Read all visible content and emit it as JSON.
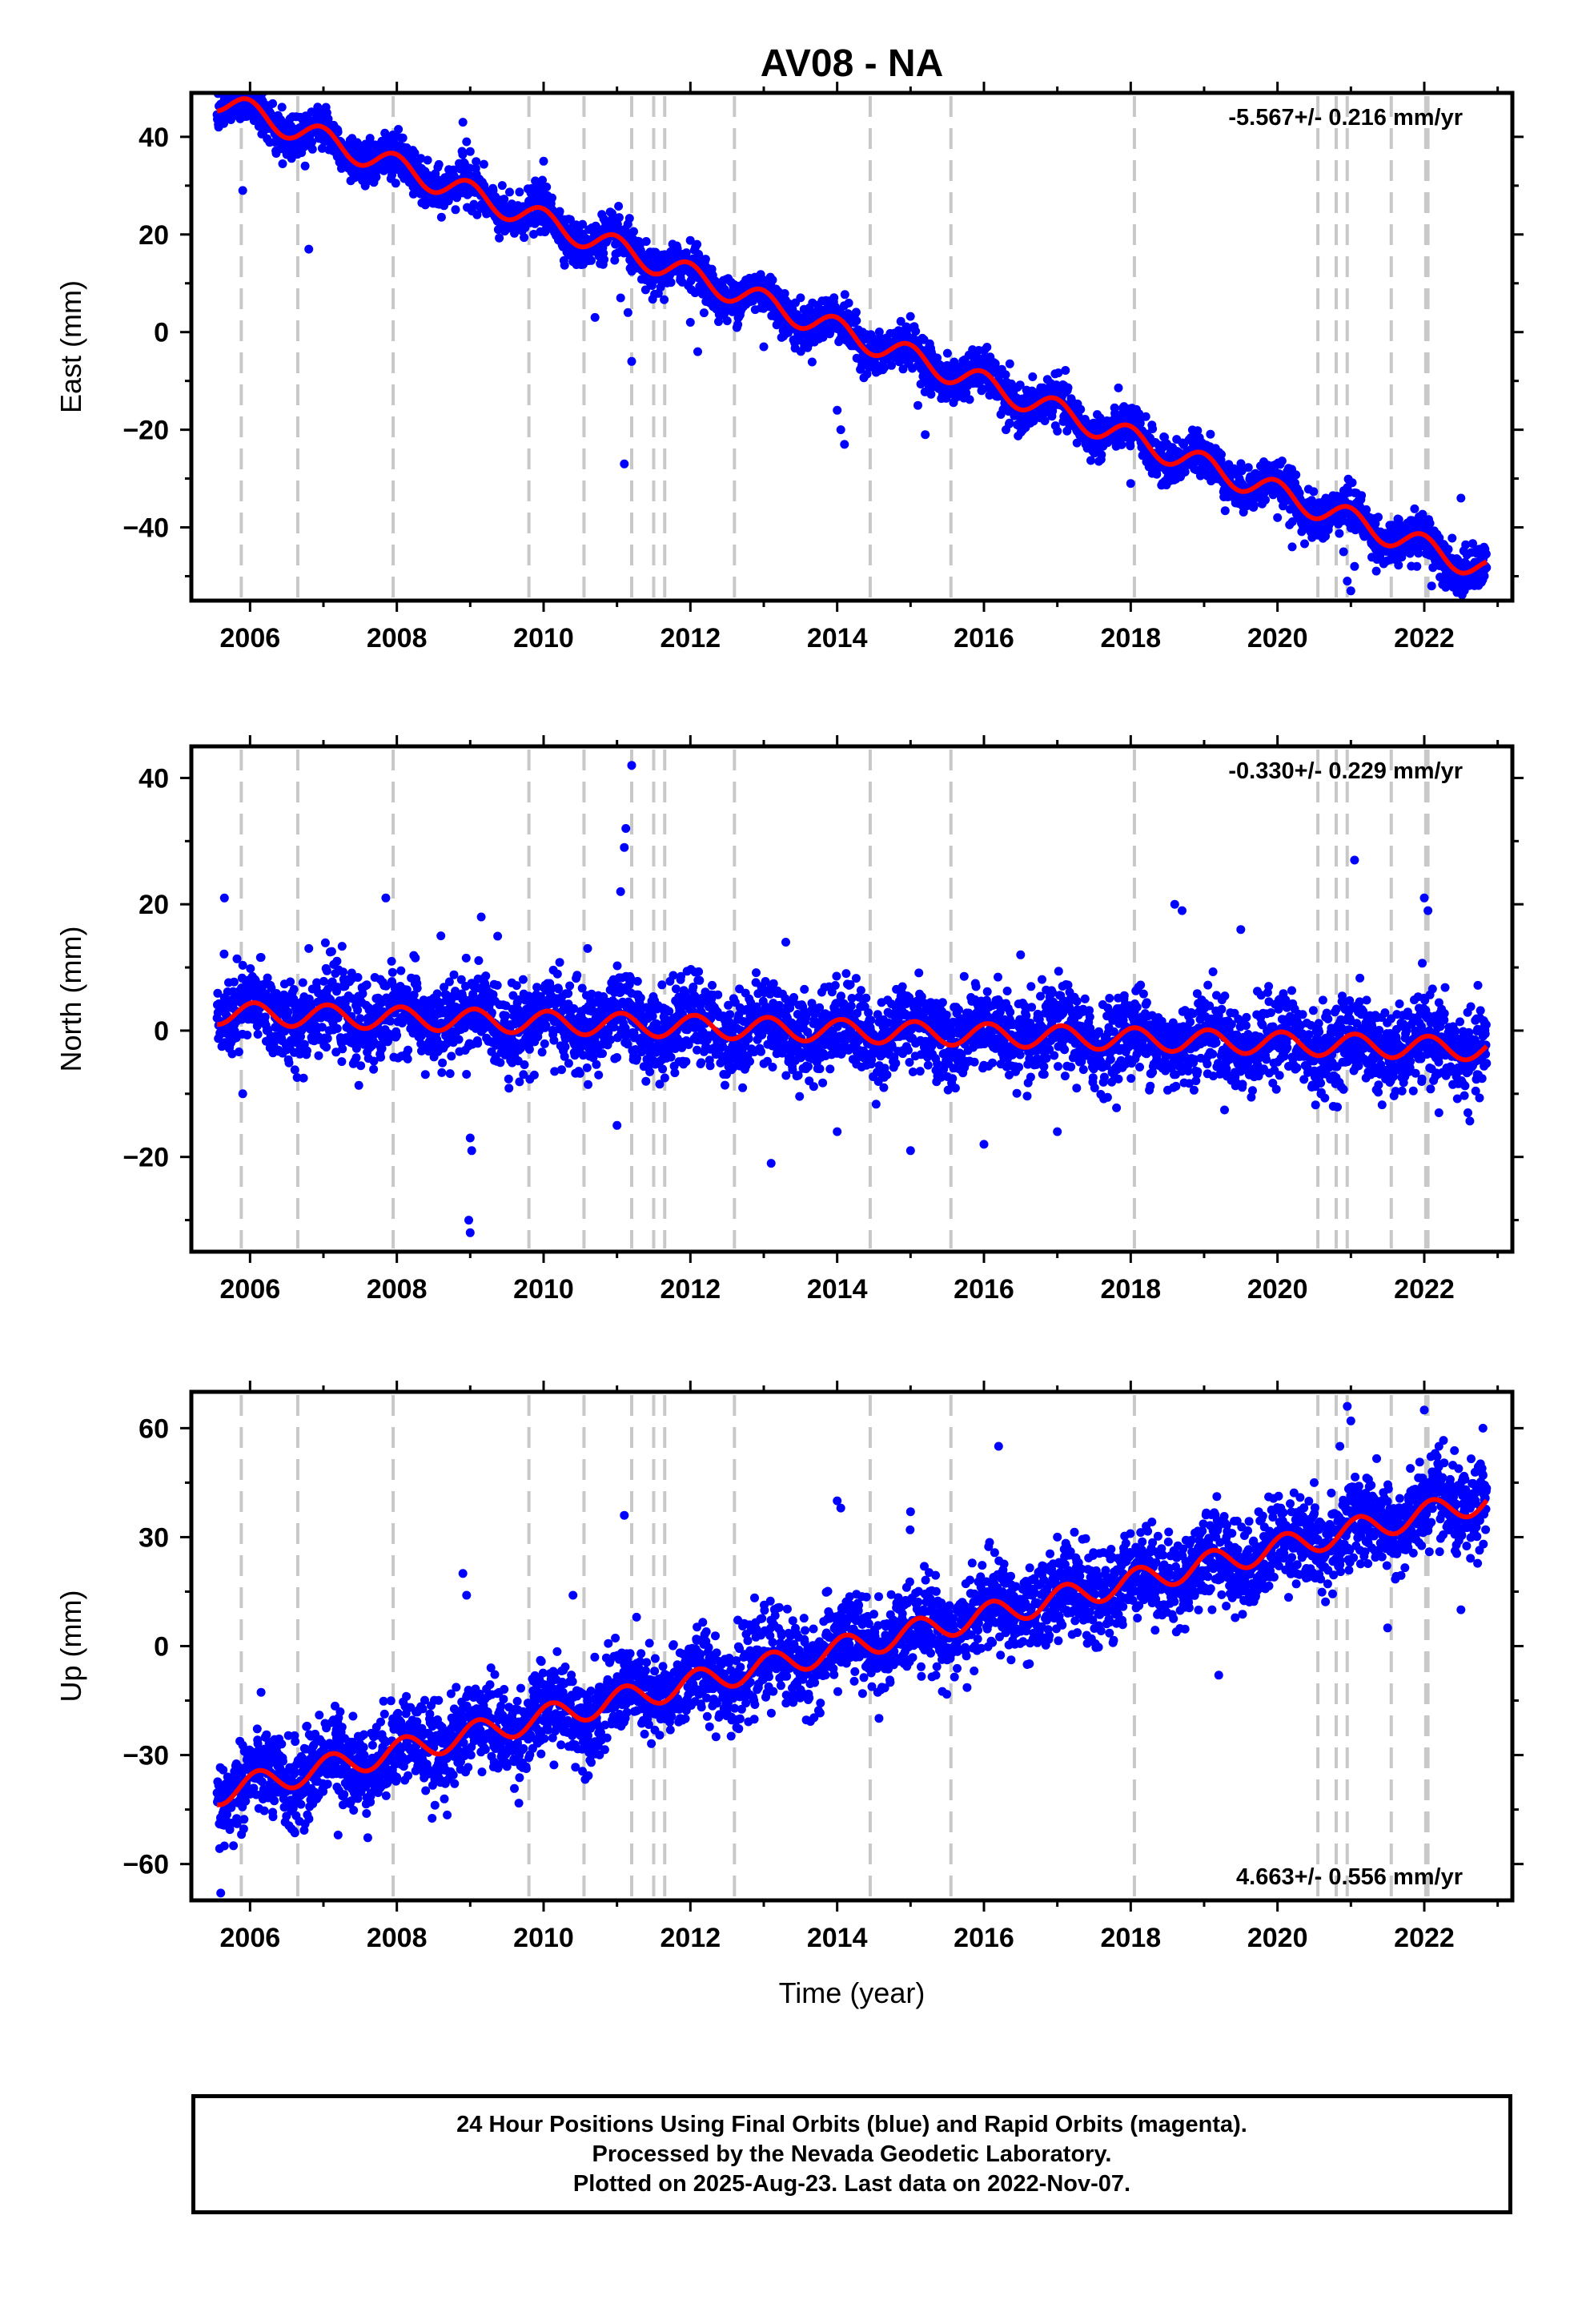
{
  "title": "AV08 - NA",
  "colors": {
    "final_orbits": "#0000ff",
    "model": "#ff0000",
    "offsets": "#c8c8c8",
    "frame": "#000000"
  },
  "footer": {
    "line1": "24 Hour Positions Using Final Orbits (blue) and Rapid Orbits (magenta).",
    "line2": "Processed by the Nevada Geodetic Laboratory.",
    "line3": "Plotted on 2025-Aug-23. Last data on 2022-Nov-07."
  },
  "chart_data": [
    {
      "type": "scatter",
      "ylabel": "East (mm)",
      "xlabel": "",
      "rate_label": "-5.567+/- 0.216 mm/yr",
      "rate_position": "top-right",
      "xlim": [
        2005.2,
        2023.2
      ],
      "ylim": [
        -55,
        49
      ],
      "xticks": [
        2006,
        2008,
        2010,
        2012,
        2014,
        2016,
        2018,
        2020,
        2022
      ],
      "yticks": [
        -40,
        -20,
        0,
        20,
        40
      ],
      "x_start": 2005.55,
      "x_end": 2022.85,
      "velocity": -5.567,
      "intercept_2014": 0.5,
      "annual_amp": 2.5,
      "annual_phase": 1.7,
      "noise": 2.2,
      "spikes": [
        {
          "x": 2005.9,
          "y": 29
        },
        {
          "x": 2006.8,
          "y": 17
        },
        {
          "x": 2008.9,
          "y": 43
        },
        {
          "x": 2008.95,
          "y": 39
        },
        {
          "x": 2009.0,
          "y": 37
        },
        {
          "x": 2010.0,
          "y": 35
        },
        {
          "x": 2010.7,
          "y": 3
        },
        {
          "x": 2011.05,
          "y": 7
        },
        {
          "x": 2011.15,
          "y": 4
        },
        {
          "x": 2011.2,
          "y": -6
        },
        {
          "x": 2011.1,
          "y": -27
        },
        {
          "x": 2012.0,
          "y": 2
        },
        {
          "x": 2012.1,
          "y": -4
        },
        {
          "x": 2013.0,
          "y": -3
        },
        {
          "x": 2014.0,
          "y": -16
        },
        {
          "x": 2014.05,
          "y": -20
        },
        {
          "x": 2014.1,
          "y": -23
        },
        {
          "x": 2015.1,
          "y": -15
        },
        {
          "x": 2015.2,
          "y": -21
        },
        {
          "x": 2016.3,
          "y": -20
        },
        {
          "x": 2016.5,
          "y": -16
        },
        {
          "x": 2018.0,
          "y": -31
        },
        {
          "x": 2020.0,
          "y": -38
        },
        {
          "x": 2020.2,
          "y": -44
        },
        {
          "x": 2020.9,
          "y": -45
        },
        {
          "x": 2020.95,
          "y": -51
        },
        {
          "x": 2021.0,
          "y": -53
        },
        {
          "x": 2021.05,
          "y": -48
        },
        {
          "x": 2021.6,
          "y": -46
        },
        {
          "x": 2021.9,
          "y": -48
        },
        {
          "x": 2022.1,
          "y": -52
        },
        {
          "x": 2022.5,
          "y": -34
        }
      ]
    },
    {
      "type": "scatter",
      "ylabel": "North (mm)",
      "xlabel": "",
      "rate_label": "-0.330+/- 0.229 mm/yr",
      "rate_position": "top-right",
      "xlim": [
        2005.2,
        2023.2
      ],
      "ylim": [
        -35,
        45
      ],
      "xticks": [
        2006,
        2008,
        2010,
        2012,
        2014,
        2016,
        2018,
        2020,
        2022
      ],
      "yticks": [
        -20,
        0,
        20,
        40
      ],
      "x_start": 2005.55,
      "x_end": 2022.85,
      "velocity": -0.33,
      "intercept_2014": 0.0,
      "annual_amp": 1.8,
      "annual_phase": 1.2,
      "noise": 3.3,
      "spikes": [
        {
          "x": 2005.65,
          "y": 21
        },
        {
          "x": 2005.9,
          "y": -10
        },
        {
          "x": 2006.8,
          "y": 13
        },
        {
          "x": 2007.85,
          "y": 21
        },
        {
          "x": 2008.6,
          "y": 15
        },
        {
          "x": 2009.0,
          "y": -17
        },
        {
          "x": 2009.02,
          "y": -19
        },
        {
          "x": 2008.98,
          "y": -30
        },
        {
          "x": 2009.0,
          "y": -32
        },
        {
          "x": 2009.15,
          "y": 18
        },
        {
          "x": 2010.6,
          "y": 13
        },
        {
          "x": 2011.0,
          "y": -15
        },
        {
          "x": 2011.05,
          "y": 22
        },
        {
          "x": 2011.1,
          "y": 29
        },
        {
          "x": 2011.12,
          "y": 32
        },
        {
          "x": 2011.2,
          "y": 42
        },
        {
          "x": 2013.1,
          "y": -21
        },
        {
          "x": 2013.3,
          "y": 14
        },
        {
          "x": 2014.0,
          "y": -16
        },
        {
          "x": 2015.0,
          "y": -19
        },
        {
          "x": 2016.0,
          "y": -18
        },
        {
          "x": 2016.5,
          "y": 12
        },
        {
          "x": 2017.0,
          "y": -16
        },
        {
          "x": 2018.6,
          "y": 20
        },
        {
          "x": 2018.7,
          "y": 19
        },
        {
          "x": 2019.5,
          "y": 16
        },
        {
          "x": 2021.05,
          "y": 27
        },
        {
          "x": 2022.0,
          "y": 21
        },
        {
          "x": 2022.05,
          "y": 19
        },
        {
          "x": 2022.2,
          "y": -13
        }
      ]
    },
    {
      "type": "scatter",
      "ylabel": "Up (mm)",
      "xlabel": "Time (year)",
      "rate_label": "4.663+/- 0.556 mm/yr",
      "rate_position": "bottom-right",
      "xlim": [
        2005.2,
        2023.2
      ],
      "ylim": [
        -70,
        70
      ],
      "xticks": [
        2006,
        2008,
        2010,
        2012,
        2014,
        2016,
        2018,
        2020,
        2022
      ],
      "yticks": [
        -60,
        -30,
        0,
        30,
        60
      ],
      "x_start": 2005.55,
      "x_end": 2022.85,
      "velocity": 4.663,
      "intercept_2014": -1.0,
      "annual_amp": 3.5,
      "annual_phase": 0.9,
      "noise": 6.0,
      "spikes": [
        {
          "x": 2005.6,
          "y": -68
        },
        {
          "x": 2005.65,
          "y": -55
        },
        {
          "x": 2006.6,
          "y": -51
        },
        {
          "x": 2007.2,
          "y": -52
        },
        {
          "x": 2008.9,
          "y": 20
        },
        {
          "x": 2008.95,
          "y": 14
        },
        {
          "x": 2010.4,
          "y": 14
        },
        {
          "x": 2011.1,
          "y": 36
        },
        {
          "x": 2014.0,
          "y": 40
        },
        {
          "x": 2014.05,
          "y": 38
        },
        {
          "x": 2015.0,
          "y": 37
        },
        {
          "x": 2016.2,
          "y": 55
        },
        {
          "x": 2017.0,
          "y": 30
        },
        {
          "x": 2019.2,
          "y": -8
        },
        {
          "x": 2020.5,
          "y": 45
        },
        {
          "x": 2020.85,
          "y": 55
        },
        {
          "x": 2020.95,
          "y": 66
        },
        {
          "x": 2021.0,
          "y": 62
        },
        {
          "x": 2021.5,
          "y": 5
        },
        {
          "x": 2022.0,
          "y": 65
        },
        {
          "x": 2022.2,
          "y": 55
        },
        {
          "x": 2022.5,
          "y": 10
        },
        {
          "x": 2022.8,
          "y": 60
        }
      ]
    }
  ],
  "offset_epochs": [
    2005.88,
    2006.65,
    2007.95,
    2009.8,
    2010.55,
    2011.2,
    2011.5,
    2011.65,
    2012.6,
    2014.45,
    2015.55,
    2018.05,
    2020.55,
    2020.8,
    2020.95,
    2021.55,
    2022.02,
    2022.05
  ]
}
